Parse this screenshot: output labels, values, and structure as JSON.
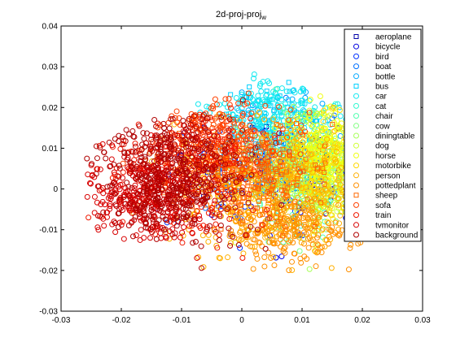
{
  "chart_data": {
    "type": "scatter",
    "title": "2d-proj-proj",
    "title_subscript": "w",
    "xlabel": "",
    "ylabel": "",
    "xlim": [
      -0.03,
      0.03
    ],
    "ylim": [
      -0.03,
      0.04
    ],
    "x_ticks": [
      "-0.03",
      "-0.02",
      "-0.01",
      "0",
      "0.01",
      "0.02",
      "0.03"
    ],
    "y_ticks": [
      "-0.03",
      "-0.02",
      "-0.01",
      "0",
      "0.01",
      "0.02",
      "0.03",
      "0.04"
    ],
    "grid": false,
    "legend_position": "top-right",
    "series": [
      {
        "name": "aeroplane",
        "marker": "square",
        "color": "#0000a8",
        "cx": 0.004,
        "cy": 0.004,
        "sx": 0.006,
        "sy": 0.006,
        "n": 50
      },
      {
        "name": "bicycle",
        "marker": "circle",
        "color": "#0000e0",
        "cx": 0.01,
        "cy": 0.003,
        "sx": 0.006,
        "sy": 0.007,
        "n": 70
      },
      {
        "name": "bird",
        "marker": "circle",
        "color": "#0030ff",
        "cx": 0.0,
        "cy": 0.004,
        "sx": 0.007,
        "sy": 0.007,
        "n": 70
      },
      {
        "name": "boat",
        "marker": "circle",
        "color": "#0070ff",
        "cx": 0.004,
        "cy": 0.006,
        "sx": 0.006,
        "sy": 0.007,
        "n": 70
      },
      {
        "name": "bottle",
        "marker": "circle",
        "color": "#00a8ff",
        "cx": 0.008,
        "cy": 0.012,
        "sx": 0.005,
        "sy": 0.007,
        "n": 90
      },
      {
        "name": "bus",
        "marker": "square",
        "color": "#00d0ff",
        "cx": 0.006,
        "cy": 0.016,
        "sx": 0.005,
        "sy": 0.006,
        "n": 80
      },
      {
        "name": "car",
        "marker": "circle",
        "color": "#10e8f0",
        "cx": 0.005,
        "cy": 0.019,
        "sx": 0.005,
        "sy": 0.005,
        "n": 180
      },
      {
        "name": "cat",
        "marker": "circle",
        "color": "#30f8d0",
        "cx": 0.012,
        "cy": 0.006,
        "sx": 0.005,
        "sy": 0.007,
        "n": 90
      },
      {
        "name": "chair",
        "marker": "circle",
        "color": "#50ffb0",
        "cx": 0.01,
        "cy": 0.004,
        "sx": 0.006,
        "sy": 0.008,
        "n": 90
      },
      {
        "name": "cow",
        "marker": "circle",
        "color": "#80ff80",
        "cx": 0.012,
        "cy": 0.002,
        "sx": 0.005,
        "sy": 0.007,
        "n": 90
      },
      {
        "name": "diningtable",
        "marker": "circle",
        "color": "#a8ff58",
        "cx": 0.012,
        "cy": 0.003,
        "sx": 0.005,
        "sy": 0.007,
        "n": 110
      },
      {
        "name": "dog",
        "marker": "circle",
        "color": "#d0ff30",
        "cx": 0.013,
        "cy": 0.004,
        "sx": 0.005,
        "sy": 0.007,
        "n": 160
      },
      {
        "name": "horse",
        "marker": "circle",
        "color": "#f0ff10",
        "cx": 0.015,
        "cy": 0.009,
        "sx": 0.004,
        "sy": 0.005,
        "n": 260
      },
      {
        "name": "motorbike",
        "marker": "circle",
        "color": "#ffd800",
        "cx": 0.011,
        "cy": 0.002,
        "sx": 0.005,
        "sy": 0.007,
        "n": 150
      },
      {
        "name": "person",
        "marker": "circle",
        "color": "#ffb000",
        "cx": 0.004,
        "cy": 0.001,
        "sx": 0.008,
        "sy": 0.008,
        "n": 480
      },
      {
        "name": "pottedplant",
        "marker": "circle",
        "color": "#ff9000",
        "cx": 0.008,
        "cy": -0.01,
        "sx": 0.005,
        "sy": 0.004,
        "n": 220
      },
      {
        "name": "sheep",
        "marker": "square",
        "color": "#ff6800",
        "cx": 0.0,
        "cy": 0.003,
        "sx": 0.007,
        "sy": 0.006,
        "n": 260
      },
      {
        "name": "sofa",
        "marker": "circle",
        "color": "#ff4000",
        "cx": -0.004,
        "cy": 0.012,
        "sx": 0.006,
        "sy": 0.005,
        "n": 250
      },
      {
        "name": "train",
        "marker": "circle",
        "color": "#f01800",
        "cx": -0.01,
        "cy": 0.004,
        "sx": 0.006,
        "sy": 0.008,
        "n": 260
      },
      {
        "name": "tvmonitor",
        "marker": "circle",
        "color": "#d80000",
        "cx": -0.016,
        "cy": -0.002,
        "sx": 0.005,
        "sy": 0.006,
        "n": 300
      },
      {
        "name": "background",
        "marker": "circle",
        "color": "#b00000",
        "cx": -0.012,
        "cy": 0.004,
        "sx": 0.006,
        "sy": 0.008,
        "n": 520
      }
    ]
  }
}
